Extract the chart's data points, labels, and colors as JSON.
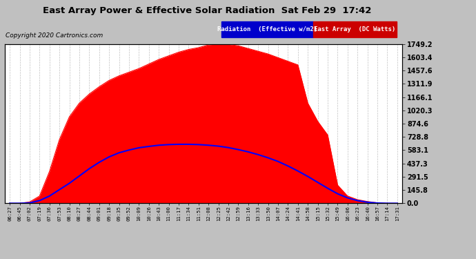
{
  "title": "East Array Power & Effective Solar Radiation  Sat Feb 29  17:42",
  "copyright": "Copyright 2020 Cartronics.com",
  "legend_radiation": "Radiation  (Effective w/m2)",
  "legend_array": "East Array  (DC Watts)",
  "yticks": [
    0.0,
    145.8,
    291.5,
    437.3,
    583.1,
    728.8,
    874.6,
    1020.3,
    1166.1,
    1311.9,
    1457.6,
    1603.4,
    1749.2
  ],
  "ylim": [
    0,
    1749.2
  ],
  "background_color": "#c0c0c0",
  "plot_bg_color": "#ffffff",
  "red_fill_color": "#ff0000",
  "blue_line_color": "#0000ff",
  "title_color": "#000000",
  "grid_color": "#b0b0b0",
  "xtick_labels": [
    "06:27",
    "06:45",
    "07:02",
    "07:19",
    "07:36",
    "07:53",
    "08:10",
    "08:27",
    "08:44",
    "09:01",
    "09:18",
    "09:35",
    "09:52",
    "10:09",
    "10:26",
    "10:43",
    "11:00",
    "11:17",
    "11:34",
    "11:51",
    "12:08",
    "12:25",
    "12:42",
    "12:59",
    "13:16",
    "13:33",
    "13:50",
    "14:07",
    "14:24",
    "14:41",
    "14:58",
    "15:15",
    "15:32",
    "15:49",
    "16:06",
    "16:23",
    "16:40",
    "16:57",
    "17:14",
    "17:31"
  ],
  "red_values": [
    0,
    0,
    15,
    80,
    350,
    700,
    950,
    1100,
    1200,
    1280,
    1350,
    1400,
    1440,
    1480,
    1530,
    1580,
    1620,
    1660,
    1690,
    1710,
    1740,
    1749,
    1745,
    1730,
    1700,
    1670,
    1640,
    1600,
    1560,
    1520,
    1100,
    900,
    750,
    200,
    80,
    40,
    20,
    5,
    0,
    0
  ],
  "blue_values": [
    0,
    0,
    5,
    30,
    80,
    150,
    220,
    300,
    380,
    450,
    510,
    555,
    585,
    610,
    625,
    638,
    645,
    648,
    648,
    645,
    638,
    628,
    612,
    590,
    565,
    535,
    500,
    460,
    410,
    355,
    295,
    230,
    165,
    105,
    60,
    30,
    12,
    3,
    0,
    0
  ],
  "n_points": 40
}
